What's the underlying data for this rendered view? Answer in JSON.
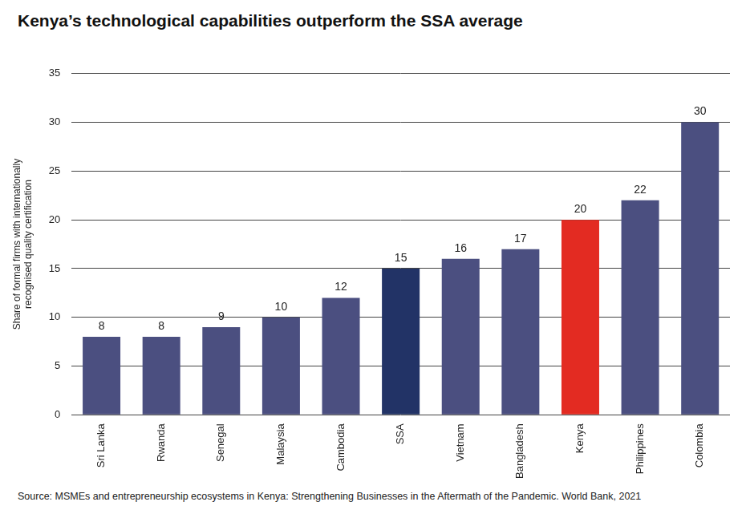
{
  "chart_data": {
    "type": "bar",
    "title": "Kenya’s technological capabilities outperform the SSA average",
    "y_label": [
      "Share of formal firms with internationally",
      "recognised quality certification"
    ],
    "source": "Source: MSMEs and entrepreneurship ecosystems in Kenya: Strengthening Businesses in the Aftermath of the Pandemic. World Bank, 2021",
    "categories": [
      "Sri Lanka",
      "Rwanda",
      "Senegal",
      "Malaysia",
      "Cambodia",
      "SSA",
      "Vietnam",
      "Bangladesh",
      "Kenya",
      "Philippines",
      "Colombia"
    ],
    "values": [
      8,
      8,
      9,
      10,
      12,
      15,
      16,
      17,
      20,
      22,
      30
    ],
    "colors": [
      "#4b4f80",
      "#4b4f80",
      "#4b4f80",
      "#4b4f80",
      "#4b4f80",
      "#223366",
      "#4b4f80",
      "#4b4f80",
      "#e32b22",
      "#4b4f80",
      "#4b4f80"
    ],
    "ylim": [
      0,
      35
    ],
    "yticks": [
      0,
      5,
      10,
      15,
      20,
      25,
      30,
      35
    ],
    "grid": true,
    "data_labels": true
  }
}
